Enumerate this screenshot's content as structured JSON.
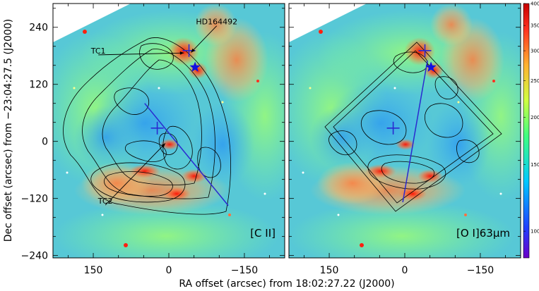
{
  "chart_data": {
    "type": "heatmap",
    "xlabel": "RA offset (arcsec) from 18:02:27.22 (J2000)",
    "ylabel": "Dec offset (arcsec) from −23:04:27.5 (J2000)",
    "xlim": [
      230,
      -230
    ],
    "ylim": [
      -245,
      290
    ],
    "x_ticks": [
      {
        "value": 150,
        "label": "150"
      },
      {
        "value": 0,
        "label": "0"
      },
      {
        "value": -150,
        "label": "−150"
      }
    ],
    "y_ticks": [
      {
        "value": 240,
        "label": "240"
      },
      {
        "value": 120,
        "label": "120"
      },
      {
        "value": 0,
        "label": "0"
      },
      {
        "value": -120,
        "label": "−120"
      },
      {
        "value": -240,
        "label": "−240"
      }
    ],
    "colorbar": {
      "range": [
        85,
        400
      ],
      "ticks": [
        {
          "value": 400,
          "label": "400"
        },
        {
          "value": 350,
          "label": "350"
        },
        {
          "value": 300,
          "label": "300"
        },
        {
          "value": 250,
          "label": "250"
        },
        {
          "value": 200,
          "label": "200"
        },
        {
          "value": 150,
          "label": "150"
        },
        {
          "value": 100,
          "label": "100"
        }
      ]
    },
    "panels": [
      {
        "label": "[C II]",
        "annotations": [
          {
            "text": "HD164492",
            "x": -95,
            "y": 243,
            "arrow_to": [
              -44,
              187
            ]
          },
          {
            "text": "TC1",
            "x": 140,
            "y": 182,
            "arrow_to": [
              -30,
              186
            ]
          },
          {
            "text": "TC2",
            "x": 126,
            "y": -134,
            "arrow_to": [
              7,
              -4
            ]
          }
        ],
        "markers": [
          {
            "type": "cross",
            "x": -40,
            "y": 191
          },
          {
            "type": "cross",
            "x": 23,
            "y": 28
          },
          {
            "type": "star",
            "x": -52,
            "y": 156
          }
        ],
        "cut_line": {
          "from": [
            48,
            80
          ],
          "to": [
            -118,
            -135
          ]
        }
      },
      {
        "label": "[O I]63μm",
        "annotations": [],
        "markers": [
          {
            "type": "cross",
            "x": -40,
            "y": 191
          },
          {
            "type": "cross",
            "x": 23,
            "y": 28
          },
          {
            "type": "star",
            "x": -52,
            "y": 156
          }
        ],
        "cut_line": {
          "from": [
            -45,
            170
          ],
          "to": [
            4,
            -128
          ]
        }
      }
    ]
  }
}
